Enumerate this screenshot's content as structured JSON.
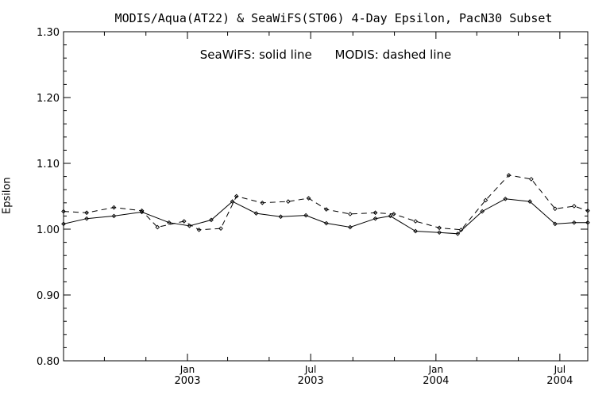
{
  "chart_data": {
    "type": "line",
    "title": "MODIS/Aqua(AT22) & SeaWiFS(ST06) 4-Day Epsilon, PacN30 Subset",
    "annotation": {
      "seawifs": "SeaWiFS: solid line",
      "modis": "MODIS: dashed line"
    },
    "xlabel": "",
    "ylabel": "Epsilon",
    "ylim": [
      0.8,
      1.3
    ],
    "yticks": [
      "0.80",
      "0.90",
      "1.00",
      "1.10",
      "1.20",
      "1.30"
    ],
    "y_minor_step": 0.02,
    "xlim": [
      "2002-07-03",
      "2004-08-11"
    ],
    "x_major_ticks": [
      {
        "date": "2003-01-01",
        "line1": "Jan",
        "line2": "2003"
      },
      {
        "date": "2003-07-01",
        "line1": "Jul",
        "line2": "2003"
      },
      {
        "date": "2004-01-01",
        "line1": "Jan",
        "line2": "2004"
      },
      {
        "date": "2004-07-01",
        "line1": "Jul",
        "line2": "2004"
      }
    ],
    "x_minor_ticks": [
      "2002-09-01",
      "2002-11-01",
      "2003-03-01",
      "2003-05-01",
      "2003-09-01",
      "2003-11-01",
      "2004-03-01",
      "2004-05-01"
    ],
    "grid": false,
    "series": [
      {
        "name": "SeaWiFS",
        "style": "solid",
        "points": [
          {
            "x": "2002-07-03",
            "y": 1.008
          },
          {
            "x": "2002-08-06",
            "y": 1.016
          },
          {
            "x": "2002-09-15",
            "y": 1.02
          },
          {
            "x": "2002-10-26",
            "y": 1.026
          },
          {
            "x": "2002-12-05",
            "y": 1.01
          },
          {
            "x": "2003-01-04",
            "y": 1.005
          },
          {
            "x": "2003-02-05",
            "y": 1.014
          },
          {
            "x": "2003-03-08",
            "y": 1.042
          },
          {
            "x": "2003-04-12",
            "y": 1.024
          },
          {
            "x": "2003-05-18",
            "y": 1.019
          },
          {
            "x": "2003-06-24",
            "y": 1.021
          },
          {
            "x": "2003-07-24",
            "y": 1.009
          },
          {
            "x": "2003-08-28",
            "y": 1.003
          },
          {
            "x": "2003-10-04",
            "y": 1.016
          },
          {
            "x": "2003-10-26",
            "y": 1.02
          },
          {
            "x": "2003-12-02",
            "y": 0.997
          },
          {
            "x": "2004-01-06",
            "y": 0.995
          },
          {
            "x": "2004-02-02",
            "y": 0.993
          },
          {
            "x": "2004-03-09",
            "y": 1.027
          },
          {
            "x": "2004-04-12",
            "y": 1.046
          },
          {
            "x": "2004-05-18",
            "y": 1.042
          },
          {
            "x": "2004-06-24",
            "y": 1.008
          },
          {
            "x": "2004-07-22",
            "y": 1.01
          },
          {
            "x": "2004-08-11",
            "y": 1.01
          }
        ]
      },
      {
        "name": "MODIS",
        "style": "dashed",
        "points": [
          {
            "x": "2002-07-03",
            "y": 1.027
          },
          {
            "x": "2002-08-06",
            "y": 1.025
          },
          {
            "x": "2002-09-15",
            "y": 1.033
          },
          {
            "x": "2002-10-26",
            "y": 1.028
          },
          {
            "x": "2002-11-18",
            "y": 1.003
          },
          {
            "x": "2002-12-27",
            "y": 1.012
          },
          {
            "x": "2003-01-18",
            "y": 0.999
          },
          {
            "x": "2003-02-19",
            "y": 1.001
          },
          {
            "x": "2003-03-14",
            "y": 1.05
          },
          {
            "x": "2003-04-21",
            "y": 1.04
          },
          {
            "x": "2003-05-29",
            "y": 1.042
          },
          {
            "x": "2003-06-28",
            "y": 1.047
          },
          {
            "x": "2003-07-24",
            "y": 1.03
          },
          {
            "x": "2003-08-28",
            "y": 1.023
          },
          {
            "x": "2003-10-04",
            "y": 1.025
          },
          {
            "x": "2003-10-31",
            "y": 1.023
          },
          {
            "x": "2003-12-02",
            "y": 1.012
          },
          {
            "x": "2004-01-06",
            "y": 1.002
          },
          {
            "x": "2004-02-07",
            "y": 0.999
          },
          {
            "x": "2004-03-14",
            "y": 1.044
          },
          {
            "x": "2004-04-17",
            "y": 1.082
          },
          {
            "x": "2004-05-20",
            "y": 1.076
          },
          {
            "x": "2004-06-24",
            "y": 1.031
          },
          {
            "x": "2004-07-22",
            "y": 1.035
          },
          {
            "x": "2004-08-11",
            "y": 1.028
          }
        ]
      }
    ]
  }
}
